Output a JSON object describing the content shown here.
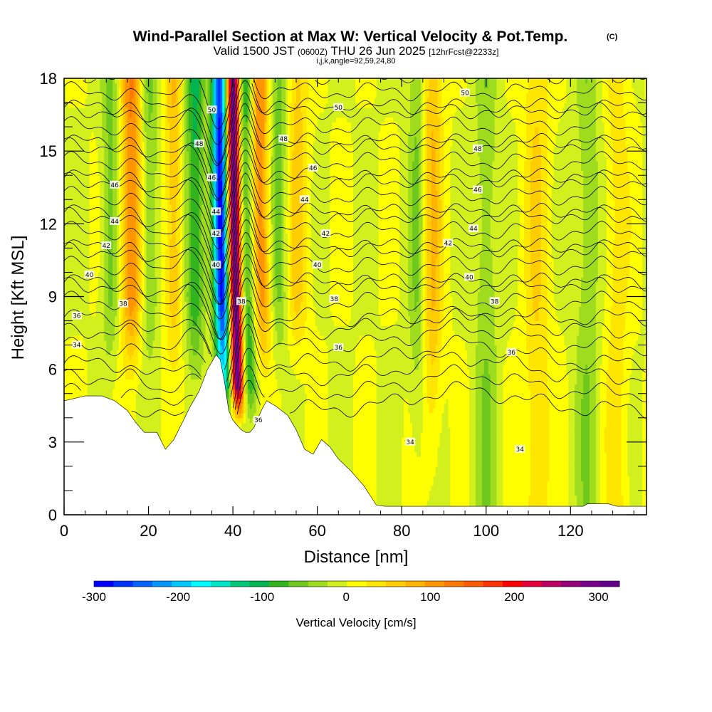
{
  "header": {
    "title": "Wind-Parallel Section at Max W: Vertical Velocity & Pot.Temp.",
    "title_suffix": "(C)",
    "valid_prefix": "Valid 1500 JST",
    "valid_z": "(0600Z)",
    "valid_date": "THU 26 Jun 2025",
    "forecast": "[12hrFcst@2233z]",
    "indices": "i,j,k,angle=92,59,24,80"
  },
  "chart_data": {
    "type": "heatmap",
    "xlabel": "Distance [nm]",
    "ylabel": "Height [Kft MSL]",
    "xlim": [
      0,
      138
    ],
    "ylim": [
      0,
      18
    ],
    "x_ticks": [
      "0",
      "20",
      "40",
      "60",
      "80",
      "100",
      "120"
    ],
    "x_tick_values": [
      0,
      20,
      40,
      60,
      80,
      100,
      120
    ],
    "y_ticks": [
      "0",
      "3",
      "6",
      "9",
      "12",
      "15",
      "18"
    ],
    "y_tick_values": [
      0,
      3,
      6,
      9,
      12,
      15,
      18
    ],
    "colorbar": {
      "label": "Vertical Velocity [cm/s]",
      "range": [
        -300,
        325
      ],
      "ticks": [
        "-300",
        "-200",
        "-100",
        "0",
        "100",
        "200",
        "300"
      ],
      "tick_values": [
        -300,
        -200,
        -100,
        0,
        100,
        200,
        300
      ],
      "colors": [
        "#0000ff",
        "#0032ff",
        "#0064ff",
        "#0096ff",
        "#00c8ff",
        "#00ffff",
        "#00e6c8",
        "#00c878",
        "#00b450",
        "#32b41e",
        "#6ec81e",
        "#a0dc1e",
        "#d2f01e",
        "#ffff00",
        "#ffe600",
        "#ffcd00",
        "#ffb400",
        "#ff9600",
        "#ff7800",
        "#ff5a00",
        "#ff3200",
        "#ff0000",
        "#e6003c",
        "#be0064",
        "#960078",
        "#78008c",
        "#64008c"
      ]
    },
    "terrain": [
      [
        0,
        4.7
      ],
      [
        5,
        4.9
      ],
      [
        9,
        4.9
      ],
      [
        12,
        4.7
      ],
      [
        15,
        4.3
      ],
      [
        17,
        3.8
      ],
      [
        19,
        3.4
      ],
      [
        22,
        3.4
      ],
      [
        24,
        2.7
      ],
      [
        26,
        3.1
      ],
      [
        28,
        3.8
      ],
      [
        30,
        4.5
      ],
      [
        32,
        5.1
      ],
      [
        34,
        6.0
      ],
      [
        36,
        6.6
      ],
      [
        37,
        6.4
      ],
      [
        38,
        5.5
      ],
      [
        39,
        4.3
      ],
      [
        40,
        3.9
      ],
      [
        41,
        3.7
      ],
      [
        42,
        3.5
      ],
      [
        43,
        3.4
      ],
      [
        44,
        3.4
      ],
      [
        45,
        3.6
      ],
      [
        46,
        4.0
      ],
      [
        47,
        4.4
      ],
      [
        48,
        4.7
      ],
      [
        50,
        4.5
      ],
      [
        53,
        4.1
      ],
      [
        55,
        3.5
      ],
      [
        57,
        2.7
      ],
      [
        59,
        2.5
      ],
      [
        61,
        3.1
      ],
      [
        63,
        2.8
      ],
      [
        65,
        2.3
      ],
      [
        68,
        1.8
      ],
      [
        71,
        1.2
      ],
      [
        74,
        0.4
      ],
      [
        76,
        0.35
      ],
      [
        120,
        0.35
      ],
      [
        123,
        0.35
      ],
      [
        124,
        0.45
      ],
      [
        129,
        0.45
      ],
      [
        131,
        0.35
      ],
      [
        138,
        0.35
      ]
    ],
    "updraft_axis": [
      [
        41.5,
        4.0
      ],
      [
        41,
        6.0
      ],
      [
        40.6,
        9.0
      ],
      [
        40.3,
        12.0
      ],
      [
        40.1,
        15.0
      ],
      [
        40,
        18.0
      ]
    ],
    "theta_levels": [
      34,
      36,
      38,
      40,
      42,
      44,
      46,
      48,
      50
    ],
    "contour_labels": [
      {
        "text": "50",
        "x": 35,
        "y": 16.7
      },
      {
        "text": "50",
        "x": 65,
        "y": 16.8
      },
      {
        "text": "50",
        "x": 95,
        "y": 17.4
      },
      {
        "text": "48",
        "x": 32,
        "y": 15.3
      },
      {
        "text": "48",
        "x": 52,
        "y": 15.5
      },
      {
        "text": "48",
        "x": 98,
        "y": 15.1
      },
      {
        "text": "46",
        "x": 12,
        "y": 13.6
      },
      {
        "text": "46",
        "x": 35,
        "y": 13.9
      },
      {
        "text": "46",
        "x": 59,
        "y": 14.3
      },
      {
        "text": "46",
        "x": 98,
        "y": 13.4
      },
      {
        "text": "44",
        "x": 12,
        "y": 12.1
      },
      {
        "text": "44",
        "x": 36,
        "y": 12.5
      },
      {
        "text": "44",
        "x": 57,
        "y": 13.0
      },
      {
        "text": "44",
        "x": 97,
        "y": 11.8
      },
      {
        "text": "42",
        "x": 10,
        "y": 11.1
      },
      {
        "text": "42",
        "x": 36,
        "y": 11.6
      },
      {
        "text": "42",
        "x": 62,
        "y": 11.6
      },
      {
        "text": "42",
        "x": 91,
        "y": 11.2
      },
      {
        "text": "40",
        "x": 6,
        "y": 9.9
      },
      {
        "text": "40",
        "x": 36,
        "y": 10.3
      },
      {
        "text": "40",
        "x": 60,
        "y": 10.3
      },
      {
        "text": "40",
        "x": 96,
        "y": 9.8
      },
      {
        "text": "38",
        "x": 14,
        "y": 8.7
      },
      {
        "text": "38",
        "x": 42,
        "y": 8.8
      },
      {
        "text": "38",
        "x": 64,
        "y": 8.9
      },
      {
        "text": "38",
        "x": 102,
        "y": 8.8
      },
      {
        "text": "36",
        "x": 3,
        "y": 8.2
      },
      {
        "text": "36",
        "x": 65,
        "y": 6.9
      },
      {
        "text": "36",
        "x": 106,
        "y": 6.7
      },
      {
        "text": "36",
        "x": 46,
        "y": 3.9
      },
      {
        "text": "34",
        "x": 3,
        "y": 7.0
      },
      {
        "text": "34",
        "x": 82,
        "y": 3.0
      },
      {
        "text": "34",
        "x": 108,
        "y": 2.7
      }
    ]
  }
}
